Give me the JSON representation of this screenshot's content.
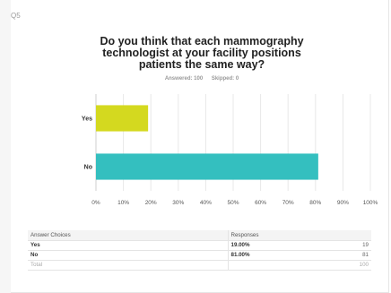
{
  "question_label": "Q5",
  "chart_data": {
    "type": "bar",
    "orientation": "horizontal",
    "title": "Do you think that each mammography technologist at your facility positions patients the same way?",
    "answered_label": "Answered: 100",
    "skipped_label": "Skipped: 0",
    "categories": [
      "Yes",
      "No"
    ],
    "values": [
      19,
      81
    ],
    "colors": [
      "#d4d91f",
      "#34bfbf"
    ],
    "xlim": [
      0,
      100
    ],
    "x_ticks": [
      "0%",
      "10%",
      "20%",
      "30%",
      "40%",
      "50%",
      "60%",
      "70%",
      "80%",
      "90%",
      "100%"
    ],
    "grid": true
  },
  "table": {
    "headers": [
      "Answer Choices",
      "Responses"
    ],
    "rows": [
      {
        "choice": "Yes",
        "percent": "19.00%",
        "count": "19"
      },
      {
        "choice": "No",
        "percent": "81.00%",
        "count": "81"
      }
    ],
    "total": {
      "label": "Total",
      "count": "100"
    }
  }
}
